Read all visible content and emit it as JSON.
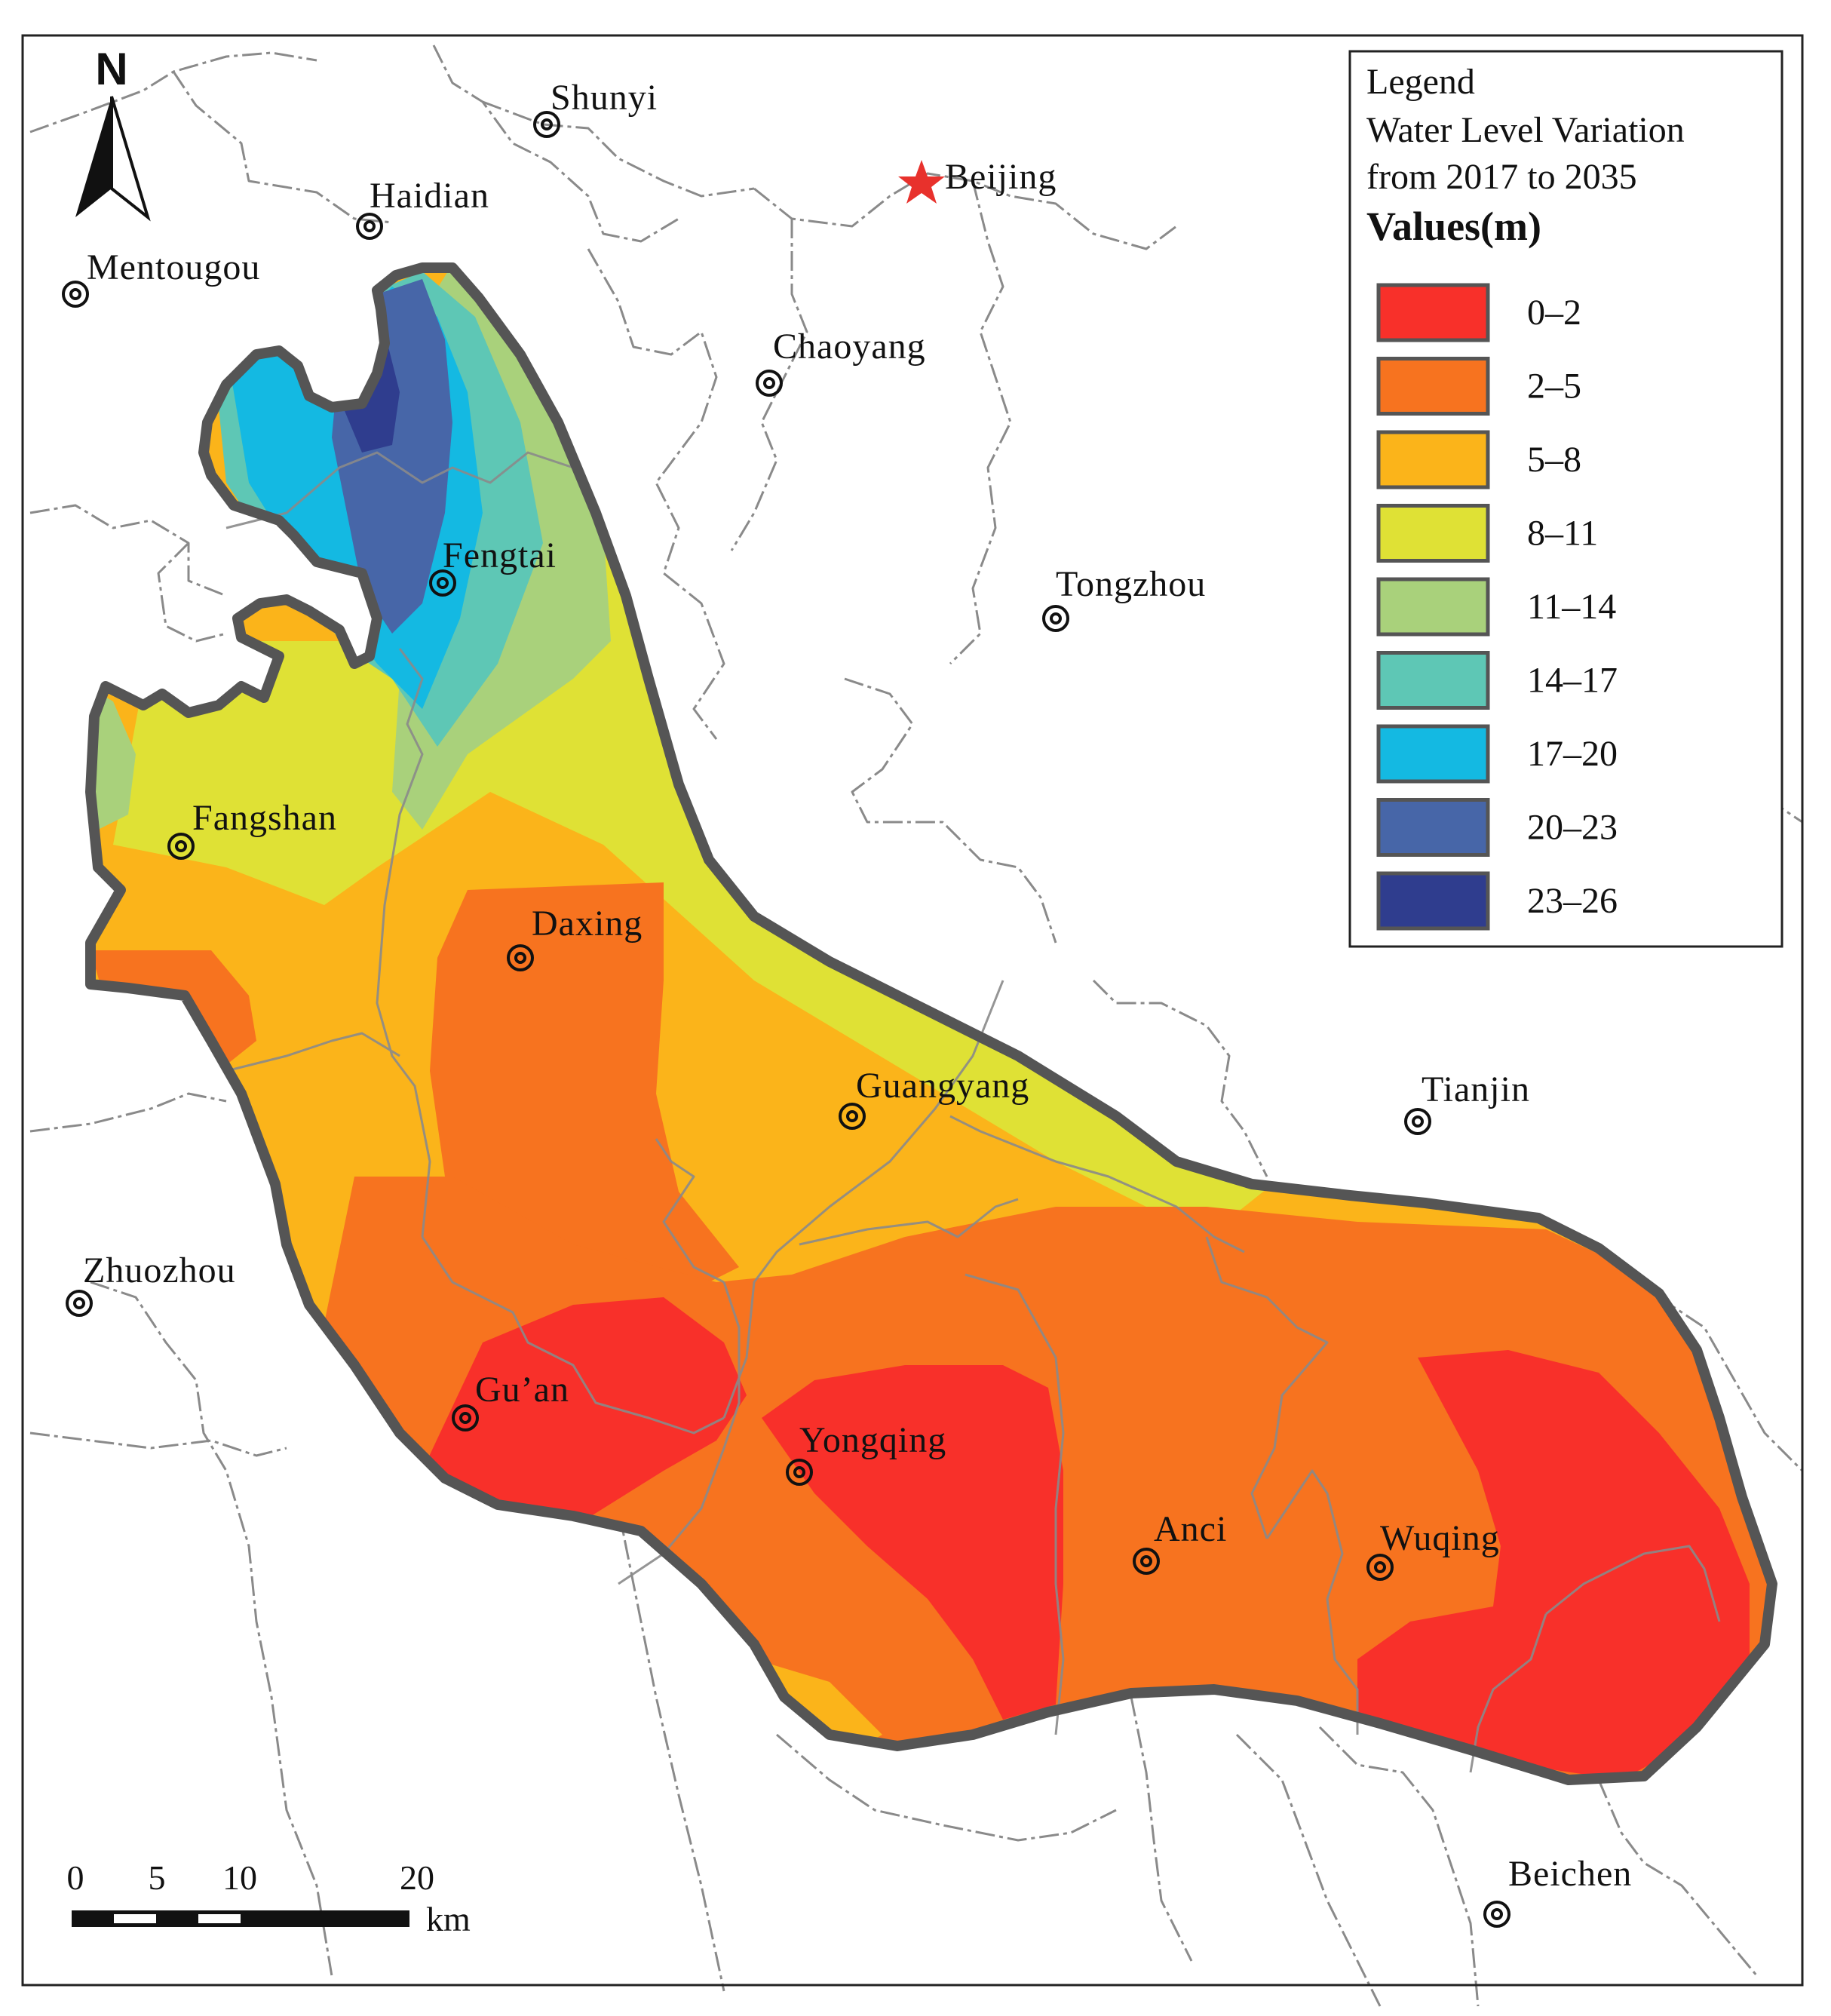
{
  "map": {
    "north_label": "N",
    "capital": {
      "name": "Beijing",
      "color": "#e8312c"
    },
    "places": [
      "Shunyi",
      "Haidian",
      "Mentougou",
      "Chaoyang",
      "Fengtai",
      "Tongzhou",
      "Fangshan",
      "Daxing",
      "Guangyang",
      "Tianjin",
      "Zhuozhou",
      "Gu’an",
      "Yongqing",
      "Anci",
      "Wuqing",
      "Beichen"
    ]
  },
  "legend": {
    "title": "Legend",
    "subtitle_line1": "Water Level Variation",
    "subtitle_line2": "from 2017 to 2035",
    "values_label": "Values(m)",
    "classes": [
      {
        "label": "0–2",
        "color": "#f8302a"
      },
      {
        "label": "2–5",
        "color": "#f7731f"
      },
      {
        "label": "5–8",
        "color": "#fbb41a"
      },
      {
        "label": "8–11",
        "color": "#dfe135"
      },
      {
        "label": "11–14",
        "color": "#a9d17b"
      },
      {
        "label": "14–17",
        "color": "#5ec7b5"
      },
      {
        "label": "17–20",
        "color": "#14b9e2"
      },
      {
        "label": "20–23",
        "color": "#4766a8"
      },
      {
        "label": "23–26",
        "color": "#2f3d8e"
      }
    ]
  },
  "scale_bar": {
    "ticks": [
      "0",
      "5",
      "10",
      "20"
    ],
    "unit": "km"
  },
  "colors": {
    "boundary": "#555555",
    "admin_lines": "#8a8a8a",
    "frame": "#222222"
  }
}
